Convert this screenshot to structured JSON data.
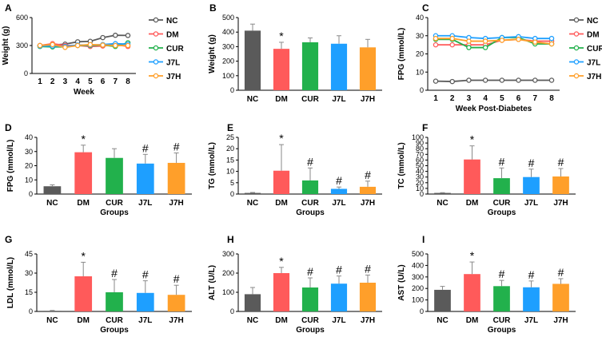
{
  "series_colors": {
    "NC": "#5a5a5a",
    "DM": "#ff5a5a",
    "CUR": "#22b14c",
    "J7L": "#1e9fff",
    "J7H": "#ff9f2a"
  },
  "chart_data": [
    {
      "panel": "A",
      "type": "line",
      "title": "",
      "xlabel": "Week",
      "ylabel": "Weight (g)",
      "x": [
        1,
        2,
        3,
        4,
        5,
        6,
        7,
        8
      ],
      "ylim": [
        0,
        600
      ],
      "yticks": [
        0,
        300,
        600
      ],
      "legend": "right",
      "series": [
        {
          "name": "NC",
          "values": [
            300,
            305,
            315,
            340,
            345,
            385,
            410,
            408
          ]
        },
        {
          "name": "DM",
          "values": [
            300,
            320,
            300,
            300,
            290,
            295,
            310,
            290
          ]
        },
        {
          "name": "CUR",
          "values": [
            290,
            285,
            285,
            300,
            300,
            305,
            290,
            330
          ]
        },
        {
          "name": "J7L",
          "values": [
            295,
            295,
            290,
            305,
            305,
            310,
            320,
            315
          ]
        },
        {
          "name": "J7H",
          "values": [
            300,
            310,
            280,
            300,
            310,
            305,
            300,
            300
          ]
        }
      ]
    },
    {
      "panel": "B",
      "type": "bar",
      "title": "",
      "xlabel": "",
      "ylabel": "Weight (g)",
      "categories": [
        "NC",
        "DM",
        "CUR",
        "J7L",
        "J7H"
      ],
      "values": [
        410,
        285,
        330,
        320,
        295
      ],
      "errors": [
        45,
        45,
        30,
        55,
        55
      ],
      "significance": [
        "",
        "*",
        "",
        "",
        ""
      ],
      "ylim": [
        0,
        500
      ],
      "yticks": [
        0,
        100,
        200,
        300,
        400,
        500
      ]
    },
    {
      "panel": "C",
      "type": "line",
      "title": "",
      "xlabel": "Week Post-Diabetes",
      "ylabel": "FPG  (mmol/L)",
      "x": [
        1,
        2,
        3,
        4,
        5,
        6,
        7,
        8
      ],
      "ylim": [
        0,
        40
      ],
      "yticks": [
        0,
        10,
        20,
        30,
        40
      ],
      "legend": "right",
      "series": [
        {
          "name": "NC",
          "values": [
            5,
            4.8,
            5.5,
            5.5,
            5.5,
            5.5,
            5.5,
            5.5
          ]
        },
        {
          "name": "DM",
          "values": [
            25,
            25,
            25,
            25,
            27.5,
            28,
            27,
            27
          ]
        },
        {
          "name": "CUR",
          "values": [
            28,
            28,
            23.5,
            23.5,
            29,
            29,
            25.5,
            25.5
          ]
        },
        {
          "name": "J7L",
          "values": [
            30,
            30,
            29,
            28.5,
            29,
            29.5,
            28.5,
            28.5
          ]
        },
        {
          "name": "J7H",
          "values": [
            28.5,
            28.5,
            27,
            27,
            27.5,
            28,
            26.5,
            25.5
          ]
        }
      ]
    },
    {
      "panel": "D",
      "type": "bar",
      "title": "",
      "xlabel": "Groups",
      "ylabel": "FPG (mmol/L)",
      "categories": [
        "NC",
        "DM",
        "CUR",
        "J7L",
        "J7H"
      ],
      "values": [
        5.5,
        29.5,
        25.5,
        21.5,
        22
      ],
      "errors": [
        1,
        5,
        6.5,
        6.5,
        7
      ],
      "significance": [
        "",
        "*",
        "",
        "#",
        "#"
      ],
      "ylim": [
        0,
        40
      ],
      "yticks": [
        0,
        10,
        20,
        30,
        40
      ]
    },
    {
      "panel": "E",
      "type": "bar",
      "title": "",
      "xlabel": "Groups",
      "ylabel": "TG (mmol/L)",
      "categories": [
        "NC",
        "DM",
        "CUR",
        "J7L",
        "J7H"
      ],
      "values": [
        0.5,
        10.3,
        6,
        2.3,
        3.2
      ],
      "errors": [
        0.2,
        11.5,
        5.5,
        0.8,
        2.5
      ],
      "significance": [
        "",
        "*",
        "#",
        "#",
        "#"
      ],
      "ylim": [
        0,
        25
      ],
      "yticks": [
        0,
        5,
        10,
        15,
        20,
        25
      ]
    },
    {
      "panel": "F",
      "type": "bar",
      "title": "",
      "xlabel": "Groups",
      "ylabel": "TC (mmol/L)",
      "categories": [
        "NC",
        "DM",
        "CUR",
        "J7L",
        "J7H"
      ],
      "values": [
        2,
        61,
        28,
        30,
        31
      ],
      "errors": [
        0.5,
        24,
        18,
        14,
        14
      ],
      "significance": [
        "",
        "*",
        "#",
        "#",
        "#"
      ],
      "ylim": [
        0,
        100
      ],
      "yticks": [
        0,
        10,
        20,
        30,
        40,
        50,
        60,
        70,
        80,
        90,
        100
      ]
    },
    {
      "panel": "G",
      "type": "bar",
      "title": "",
      "xlabel": "Groups",
      "ylabel": "LDL (mmol/L)",
      "categories": [
        "NC",
        "DM",
        "CUR",
        "J7L",
        "J7H"
      ],
      "values": [
        0.5,
        27.5,
        15,
        14.5,
        13
      ],
      "errors": [
        0.3,
        11,
        10,
        9.5,
        7.5
      ],
      "significance": [
        "",
        "*",
        "#",
        "#",
        "#"
      ],
      "ylim": [
        0,
        45
      ],
      "yticks": [
        0,
        15,
        30,
        45
      ]
    },
    {
      "panel": "H",
      "type": "bar",
      "title": "",
      "xlabel": "Groups",
      "ylabel": "ALT (U/L)",
      "categories": [
        "NC",
        "DM",
        "CUR",
        "J7L",
        "J7H"
      ],
      "values": [
        90,
        200,
        125,
        145,
        150
      ],
      "errors": [
        35,
        30,
        50,
        40,
        40
      ],
      "significance": [
        "",
        "*",
        "#",
        "#",
        "#"
      ],
      "ylim": [
        0,
        300
      ],
      "yticks": [
        0,
        100,
        200,
        300
      ]
    },
    {
      "panel": "I",
      "type": "bar",
      "title": "",
      "xlabel": "Groups",
      "ylabel": "AST (U/L)",
      "categories": [
        "NC",
        "DM",
        "CUR",
        "J7L",
        "J7H"
      ],
      "values": [
        188,
        325,
        220,
        210,
        240
      ],
      "errors": [
        30,
        105,
        50,
        55,
        45
      ],
      "significance": [
        "",
        "*",
        "#",
        "#",
        "#"
      ],
      "ylim": [
        0,
        500
      ],
      "yticks": [
        0,
        100,
        200,
        300,
        400,
        500
      ]
    }
  ]
}
